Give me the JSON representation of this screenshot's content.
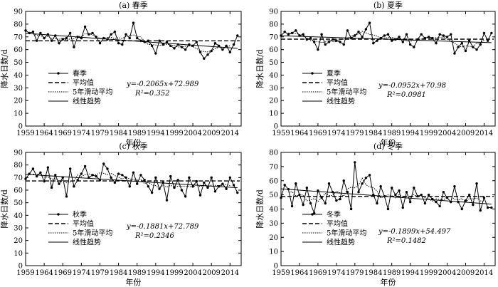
{
  "xlabel": "年份",
  "ylabel": "降水日数/d",
  "legend_labels": {
    "mean": "平均值",
    "moving": "5年滑动平均",
    "trend": "线性趋势"
  },
  "chart_data": [
    {
      "type": "line",
      "title": "(a) 春季",
      "series_name": "春季",
      "xlim": [
        1959,
        2017
      ],
      "ylim": [
        0,
        90
      ],
      "x_ticks": [
        1959,
        1964,
        1969,
        1974,
        1979,
        1984,
        1989,
        1994,
        1999,
        2004,
        2009,
        2014
      ],
      "y_ticks": [
        0,
        10,
        20,
        30,
        40,
        50,
        60,
        70,
        80,
        90
      ],
      "x": [
        1959,
        1960,
        1961,
        1962,
        1963,
        1964,
        1965,
        1966,
        1967,
        1968,
        1969,
        1970,
        1971,
        1972,
        1973,
        1974,
        1975,
        1976,
        1977,
        1978,
        1979,
        1980,
        1981,
        1982,
        1983,
        1984,
        1985,
        1986,
        1987,
        1988,
        1989,
        1990,
        1991,
        1992,
        1993,
        1994,
        1995,
        1996,
        1997,
        1998,
        1999,
        2000,
        2001,
        2002,
        2003,
        2004,
        2005,
        2006,
        2007,
        2008,
        2009,
        2010,
        2011,
        2012,
        2013,
        2014,
        2015,
        2016
      ],
      "values": [
        75,
        73,
        74,
        67,
        73,
        69,
        72,
        67,
        71,
        65,
        68,
        69,
        73,
        62,
        70,
        69,
        78,
        72,
        73,
        70,
        65,
        69,
        68,
        72,
        74,
        65,
        64,
        72,
        69,
        81,
        69,
        67,
        66,
        67,
        63,
        57,
        67,
        64,
        66,
        63,
        61,
        64,
        62,
        60,
        64,
        63,
        66,
        58,
        53,
        56,
        59,
        65,
        63,
        60,
        63,
        58,
        64,
        71
      ],
      "mean": 66.9,
      "trend_eq": "y=-0.2065x+72.989",
      "r2": "R²=0.352",
      "trend": {
        "slope": -0.2065,
        "intercept": 72.989
      }
    },
    {
      "type": "line",
      "title": "(b) 夏季",
      "series_name": "夏季",
      "xlim": [
        1959,
        2017
      ],
      "ylim": [
        0,
        90
      ],
      "x_ticks": [
        1959,
        1964,
        1969,
        1974,
        1979,
        1984,
        1989,
        1994,
        1999,
        2004,
        2009,
        2014
      ],
      "y_ticks": [
        0,
        10,
        20,
        30,
        40,
        50,
        60,
        70,
        80,
        90
      ],
      "x": [
        1959,
        1960,
        1961,
        1962,
        1963,
        1964,
        1965,
        1966,
        1967,
        1968,
        1969,
        1970,
        1971,
        1972,
        1973,
        1974,
        1975,
        1976,
        1977,
        1978,
        1979,
        1980,
        1981,
        1982,
        1983,
        1984,
        1985,
        1986,
        1987,
        1988,
        1989,
        1990,
        1991,
        1992,
        1993,
        1994,
        1995,
        1996,
        1997,
        1998,
        1999,
        2000,
        2001,
        2002,
        2003,
        2004,
        2005,
        2006,
        2007,
        2008,
        2009,
        2010,
        2011,
        2012,
        2013,
        2014,
        2015,
        2016
      ],
      "values": [
        71,
        74,
        72,
        73,
        75,
        71,
        72,
        68,
        69,
        66,
        60,
        72,
        64,
        66,
        68,
        67,
        66,
        64,
        75,
        69,
        71,
        74,
        70,
        76,
        81,
        65,
        67,
        69,
        71,
        72,
        67,
        68,
        70,
        66,
        72,
        64,
        62,
        68,
        72,
        69,
        70,
        69,
        65,
        72,
        71,
        70,
        72,
        57,
        62,
        65,
        59,
        67,
        62,
        60,
        64,
        73,
        67,
        73
      ],
      "mean": 68.2,
      "trend_eq": "y=-0.0952x+70.98",
      "r2": "R²=0.0981",
      "trend": {
        "slope": -0.0952,
        "intercept": 70.98
      }
    },
    {
      "type": "line",
      "title": "(c) 秋季",
      "series_name": "秋季",
      "xlim": [
        1959,
        2017
      ],
      "ylim": [
        0,
        90
      ],
      "x_ticks": [
        1959,
        1964,
        1969,
        1974,
        1979,
        1984,
        1989,
        1994,
        1999,
        2004,
        2009,
        2014
      ],
      "y_ticks": [
        0,
        10,
        20,
        30,
        40,
        50,
        60,
        70,
        80,
        90
      ],
      "x": [
        1959,
        1960,
        1961,
        1962,
        1963,
        1964,
        1965,
        1966,
        1967,
        1968,
        1969,
        1970,
        1971,
        1972,
        1973,
        1974,
        1975,
        1976,
        1977,
        1978,
        1979,
        1980,
        1981,
        1982,
        1983,
        1984,
        1985,
        1986,
        1987,
        1988,
        1989,
        1990,
        1991,
        1992,
        1993,
        1994,
        1995,
        1996,
        1997,
        1998,
        1999,
        2000,
        2001,
        2002,
        2003,
        2004,
        2005,
        2006,
        2007,
        2008,
        2009,
        2010,
        2011,
        2012,
        2013,
        2014,
        2015,
        2016
      ],
      "values": [
        69,
        73,
        77,
        71,
        74,
        67,
        78,
        62,
        72,
        65,
        70,
        55,
        77,
        63,
        68,
        73,
        79,
        70,
        72,
        71,
        68,
        81,
        77,
        70,
        66,
        73,
        72,
        70,
        63,
        74,
        65,
        72,
        68,
        63,
        58,
        70,
        61,
        66,
        52,
        71,
        62,
        68,
        60,
        55,
        70,
        63,
        67,
        56,
        66,
        62,
        70,
        59,
        63,
        65,
        61,
        70,
        64,
        58
      ],
      "mean": 67.3,
      "trend_eq": "y=-0.1881x+72.789",
      "r2": "R²=0.2346",
      "trend": {
        "slope": -0.1881,
        "intercept": 72.789
      }
    },
    {
      "type": "line",
      "title": "(d) 冬季",
      "series_name": "冬季",
      "xlim": [
        1959,
        2017
      ],
      "ylim": [
        0,
        80
      ],
      "x_ticks": [
        1959,
        1964,
        1969,
        1974,
        1979,
        1984,
        1989,
        1994,
        1999,
        2004,
        2009,
        2014
      ],
      "y_ticks": [
        0,
        10,
        20,
        30,
        40,
        50,
        60,
        70,
        80
      ],
      "x": [
        1959,
        1960,
        1961,
        1962,
        1963,
        1964,
        1965,
        1966,
        1967,
        1968,
        1969,
        1970,
        1971,
        1972,
        1973,
        1974,
        1975,
        1976,
        1977,
        1978,
        1979,
        1980,
        1981,
        1982,
        1983,
        1984,
        1985,
        1986,
        1987,
        1988,
        1989,
        1990,
        1991,
        1992,
        1993,
        1994,
        1995,
        1996,
        1997,
        1998,
        1999,
        2000,
        2001,
        2002,
        2003,
        2004,
        2005,
        2006,
        2007,
        2008,
        2009,
        2010,
        2011,
        2012,
        2013,
        2014,
        2015,
        2016
      ],
      "values": [
        48,
        57,
        54,
        42,
        58,
        50,
        43,
        55,
        44,
        37,
        53,
        48,
        44,
        58,
        52,
        46,
        47,
        60,
        52,
        40,
        73,
        52,
        58,
        62,
        64,
        50,
        44,
        56,
        49,
        40,
        55,
        50,
        53,
        41,
        52,
        45,
        55,
        49,
        50,
        44,
        50,
        47,
        45,
        42,
        52,
        48,
        45,
        56,
        45,
        40,
        46,
        50,
        43,
        58,
        39,
        48,
        41,
        41
      ],
      "mean": 48.9,
      "trend_eq": "y=-0.1899x+54.497",
      "r2": "R²=0.1482",
      "trend": {
        "slope": -0.1899,
        "intercept": 54.497
      }
    }
  ]
}
